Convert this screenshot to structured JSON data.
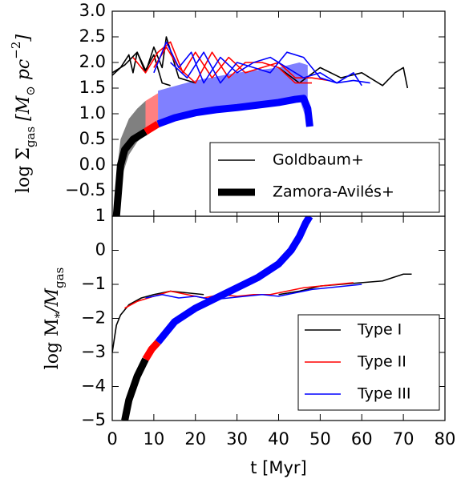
{
  "chart_data": [
    {
      "type": "line",
      "ylim": [
        -1,
        3
      ],
      "yticks": [
        {
          "value": 3,
          "label": "3.0"
        },
        {
          "value": 2.5,
          "label": "2.5"
        },
        {
          "value": 2,
          "label": "2.0"
        },
        {
          "value": 1.5,
          "label": "1.5"
        },
        {
          "value": 1,
          "label": "1.0"
        },
        {
          "value": 0.5,
          "label": "0.5"
        },
        {
          "value": 0,
          "label": "0.0"
        },
        {
          "value": -0.5,
          "label": "−0.5"
        }
      ],
      "ylabel": [
        {
          "text": "log Σ"
        },
        {
          "text": "gas",
          "sub": true
        },
        {
          "text": "  [M"
        },
        {
          "text": "⊙",
          "sub": true
        },
        {
          "text": " pc"
        },
        {
          "text": "−2",
          "sup": true
        },
        {
          "text": "]"
        }
      ],
      "bands": [
        {
          "color": "#808080",
          "x": [
            1,
            2,
            4,
            6,
            8
          ],
          "low": [
            -1,
            -0.3,
            0.2,
            0.45,
            0.6
          ],
          "high": [
            -0.2,
            0.5,
            0.9,
            1.1,
            1.25
          ]
        },
        {
          "color": "#ff8080",
          "x": [
            8,
            11
          ],
          "low": [
            0.6,
            0.75
          ],
          "high": [
            1.25,
            1.4
          ]
        },
        {
          "color": "#8080ff",
          "x": [
            11,
            20,
            30,
            40,
            45,
            47
          ],
          "low": [
            0.75,
            1.0,
            1.1,
            1.2,
            1.3,
            0.8
          ],
          "high": [
            1.45,
            1.65,
            1.8,
            1.9,
            2.0,
            1.95
          ]
        }
      ],
      "series": [
        {
          "color": "#000000",
          "width": "thin",
          "x": [
            0,
            2,
            4,
            5,
            6,
            8,
            10,
            12,
            14
          ],
          "values": [
            1.75,
            1.9,
            2.15,
            1.8,
            2.2,
            1.85,
            2.15,
            1.6,
            1.55
          ]
        },
        {
          "color": "#000000",
          "width": "thin",
          "x": [
            0,
            3,
            6,
            8,
            10,
            12,
            13,
            16,
            20
          ],
          "values": [
            1.8,
            1.95,
            2.2,
            1.8,
            2.3,
            1.9,
            2.5,
            1.7,
            1.6
          ]
        },
        {
          "color": "#000000",
          "width": "thin",
          "x": [
            40,
            45,
            50,
            55,
            60,
            65,
            68,
            70,
            71
          ],
          "values": [
            1.9,
            1.6,
            1.9,
            1.7,
            1.8,
            1.55,
            1.8,
            1.9,
            1.5
          ]
        },
        {
          "color": "#ff0000",
          "width": "thin",
          "x": [
            5,
            8,
            11,
            14,
            17,
            20,
            24,
            28,
            32,
            36,
            40,
            44,
            48,
            52
          ],
          "values": [
            2.1,
            1.8,
            2.2,
            2.4,
            1.8,
            2.2,
            1.7,
            2.1,
            1.8,
            1.9,
            2.0,
            1.7,
            1.7,
            1.65
          ]
        },
        {
          "color": "#ff0000",
          "width": "thin",
          "x": [
            10,
            13,
            16,
            20,
            24,
            28,
            32,
            36,
            40,
            44,
            48
          ],
          "values": [
            1.9,
            2.3,
            1.9,
            1.6,
            2.2,
            1.7,
            2.0,
            2.0,
            1.9,
            1.6,
            1.6
          ]
        },
        {
          "color": "#0000ff",
          "width": "thin",
          "x": [
            10,
            13,
            16,
            19,
            22,
            26,
            30,
            34,
            38,
            42,
            46,
            50,
            54,
            58,
            62
          ],
          "values": [
            1.8,
            2.4,
            1.9,
            2.2,
            1.6,
            2.1,
            1.8,
            2.0,
            2.1,
            1.9,
            1.7,
            1.8,
            1.6,
            1.65,
            1.6
          ]
        },
        {
          "color": "#0000ff",
          "width": "thin",
          "x": [
            14,
            18,
            22,
            26,
            30,
            34,
            38,
            42,
            46,
            50,
            54,
            58,
            60
          ],
          "values": [
            2.0,
            1.7,
            2.2,
            1.6,
            2.0,
            1.9,
            1.8,
            2.2,
            2.1,
            1.7,
            1.6,
            1.8,
            1.55
          ]
        },
        {
          "color": "#000000",
          "width": "thick",
          "x": [
            1,
            2,
            3,
            5,
            8
          ],
          "values": [
            -1,
            0,
            0.3,
            0.5,
            0.65
          ]
        },
        {
          "color": "#ff0000",
          "width": "thick",
          "x": [
            8,
            9,
            11
          ],
          "values": [
            0.65,
            0.7,
            0.8
          ]
        },
        {
          "color": "#0000ff",
          "width": "thick",
          "x": [
            11,
            15,
            20,
            25,
            30,
            35,
            40,
            44,
            46,
            47,
            47.5
          ],
          "values": [
            0.8,
            0.92,
            1.02,
            1.08,
            1.12,
            1.17,
            1.22,
            1.28,
            1.3,
            1.1,
            0.75
          ]
        }
      ],
      "legend": [
        {
          "name": "Goldbaum+",
          "width": "thin"
        },
        {
          "name": "Zamora-Avilés+",
          "width": "thick"
        }
      ]
    },
    {
      "type": "line",
      "xlim": [
        0,
        80
      ],
      "xticks": [
        0,
        10,
        20,
        30,
        40,
        50,
        60,
        70,
        80
      ],
      "xlabel": "t [Myr]",
      "ylim": [
        -5,
        1
      ],
      "yticks": [
        {
          "value": -5,
          "label": "−5"
        },
        {
          "value": -4,
          "label": "−4"
        },
        {
          "value": -3,
          "label": "−3"
        },
        {
          "value": -2,
          "label": "−2"
        },
        {
          "value": -1,
          "label": "−1"
        },
        0,
        1
      ],
      "ylabel": [
        {
          "text": "log M"
        },
        {
          "text": "*",
          "sub": true
        },
        {
          "text": "/M"
        },
        {
          "text": "gas",
          "sub": true
        }
      ],
      "series": [
        {
          "color": "#000000",
          "width": "thin",
          "x": [
            0,
            1,
            2,
            4,
            7,
            10,
            14,
            18,
            22
          ],
          "values": [
            -3,
            -2.2,
            -1.9,
            -1.6,
            -1.4,
            -1.3,
            -1.2,
            -1.25,
            -1.3
          ]
        },
        {
          "color": "#000000",
          "width": "thin",
          "x": [
            40,
            45,
            50,
            55,
            60,
            65,
            70,
            72
          ],
          "values": [
            -1.3,
            -1.2,
            -1.05,
            -1.0,
            -0.95,
            -0.9,
            -0.7,
            -0.7
          ]
        },
        {
          "color": "#ff0000",
          "width": "thin",
          "x": [
            3,
            6,
            10,
            14,
            18,
            22,
            26,
            30,
            34,
            38,
            42,
            46,
            50,
            54,
            58
          ],
          "values": [
            -1.7,
            -1.5,
            -1.35,
            -1.2,
            -1.3,
            -1.4,
            -1.3,
            -1.35,
            -1.3,
            -1.3,
            -1.2,
            -1.1,
            -1.05,
            -1.0,
            -0.95
          ]
        },
        {
          "color": "#0000ff",
          "width": "thin",
          "x": [
            8,
            12,
            16,
            20,
            24,
            28,
            32,
            36,
            40,
            44,
            48,
            52,
            56,
            60
          ],
          "values": [
            -1.4,
            -1.3,
            -1.4,
            -1.35,
            -1.45,
            -1.4,
            -1.35,
            -1.3,
            -1.35,
            -1.25,
            -1.15,
            -1.1,
            -1.05,
            -1.0
          ]
        },
        {
          "color": "#000000",
          "width": "thick",
          "x": [
            3,
            4,
            6,
            8
          ],
          "values": [
            -5,
            -4.4,
            -3.7,
            -3.2
          ]
        },
        {
          "color": "#ff0000",
          "width": "thick",
          "x": [
            8,
            9.5,
            11
          ],
          "values": [
            -3.2,
            -2.9,
            -2.7
          ]
        },
        {
          "color": "#0000ff",
          "width": "thick",
          "x": [
            11,
            15,
            20,
            25,
            30,
            35,
            40,
            43,
            45,
            46.5,
            47.5
          ],
          "values": [
            -2.7,
            -2.1,
            -1.7,
            -1.4,
            -1.1,
            -0.8,
            -0.4,
            0,
            0.4,
            0.8,
            1
          ]
        }
      ],
      "legend": [
        {
          "name": "Type I",
          "color": "#000000"
        },
        {
          "name": "Type II",
          "color": "#ff0000"
        },
        {
          "name": "Type III",
          "color": "#0000ff"
        }
      ]
    }
  ]
}
